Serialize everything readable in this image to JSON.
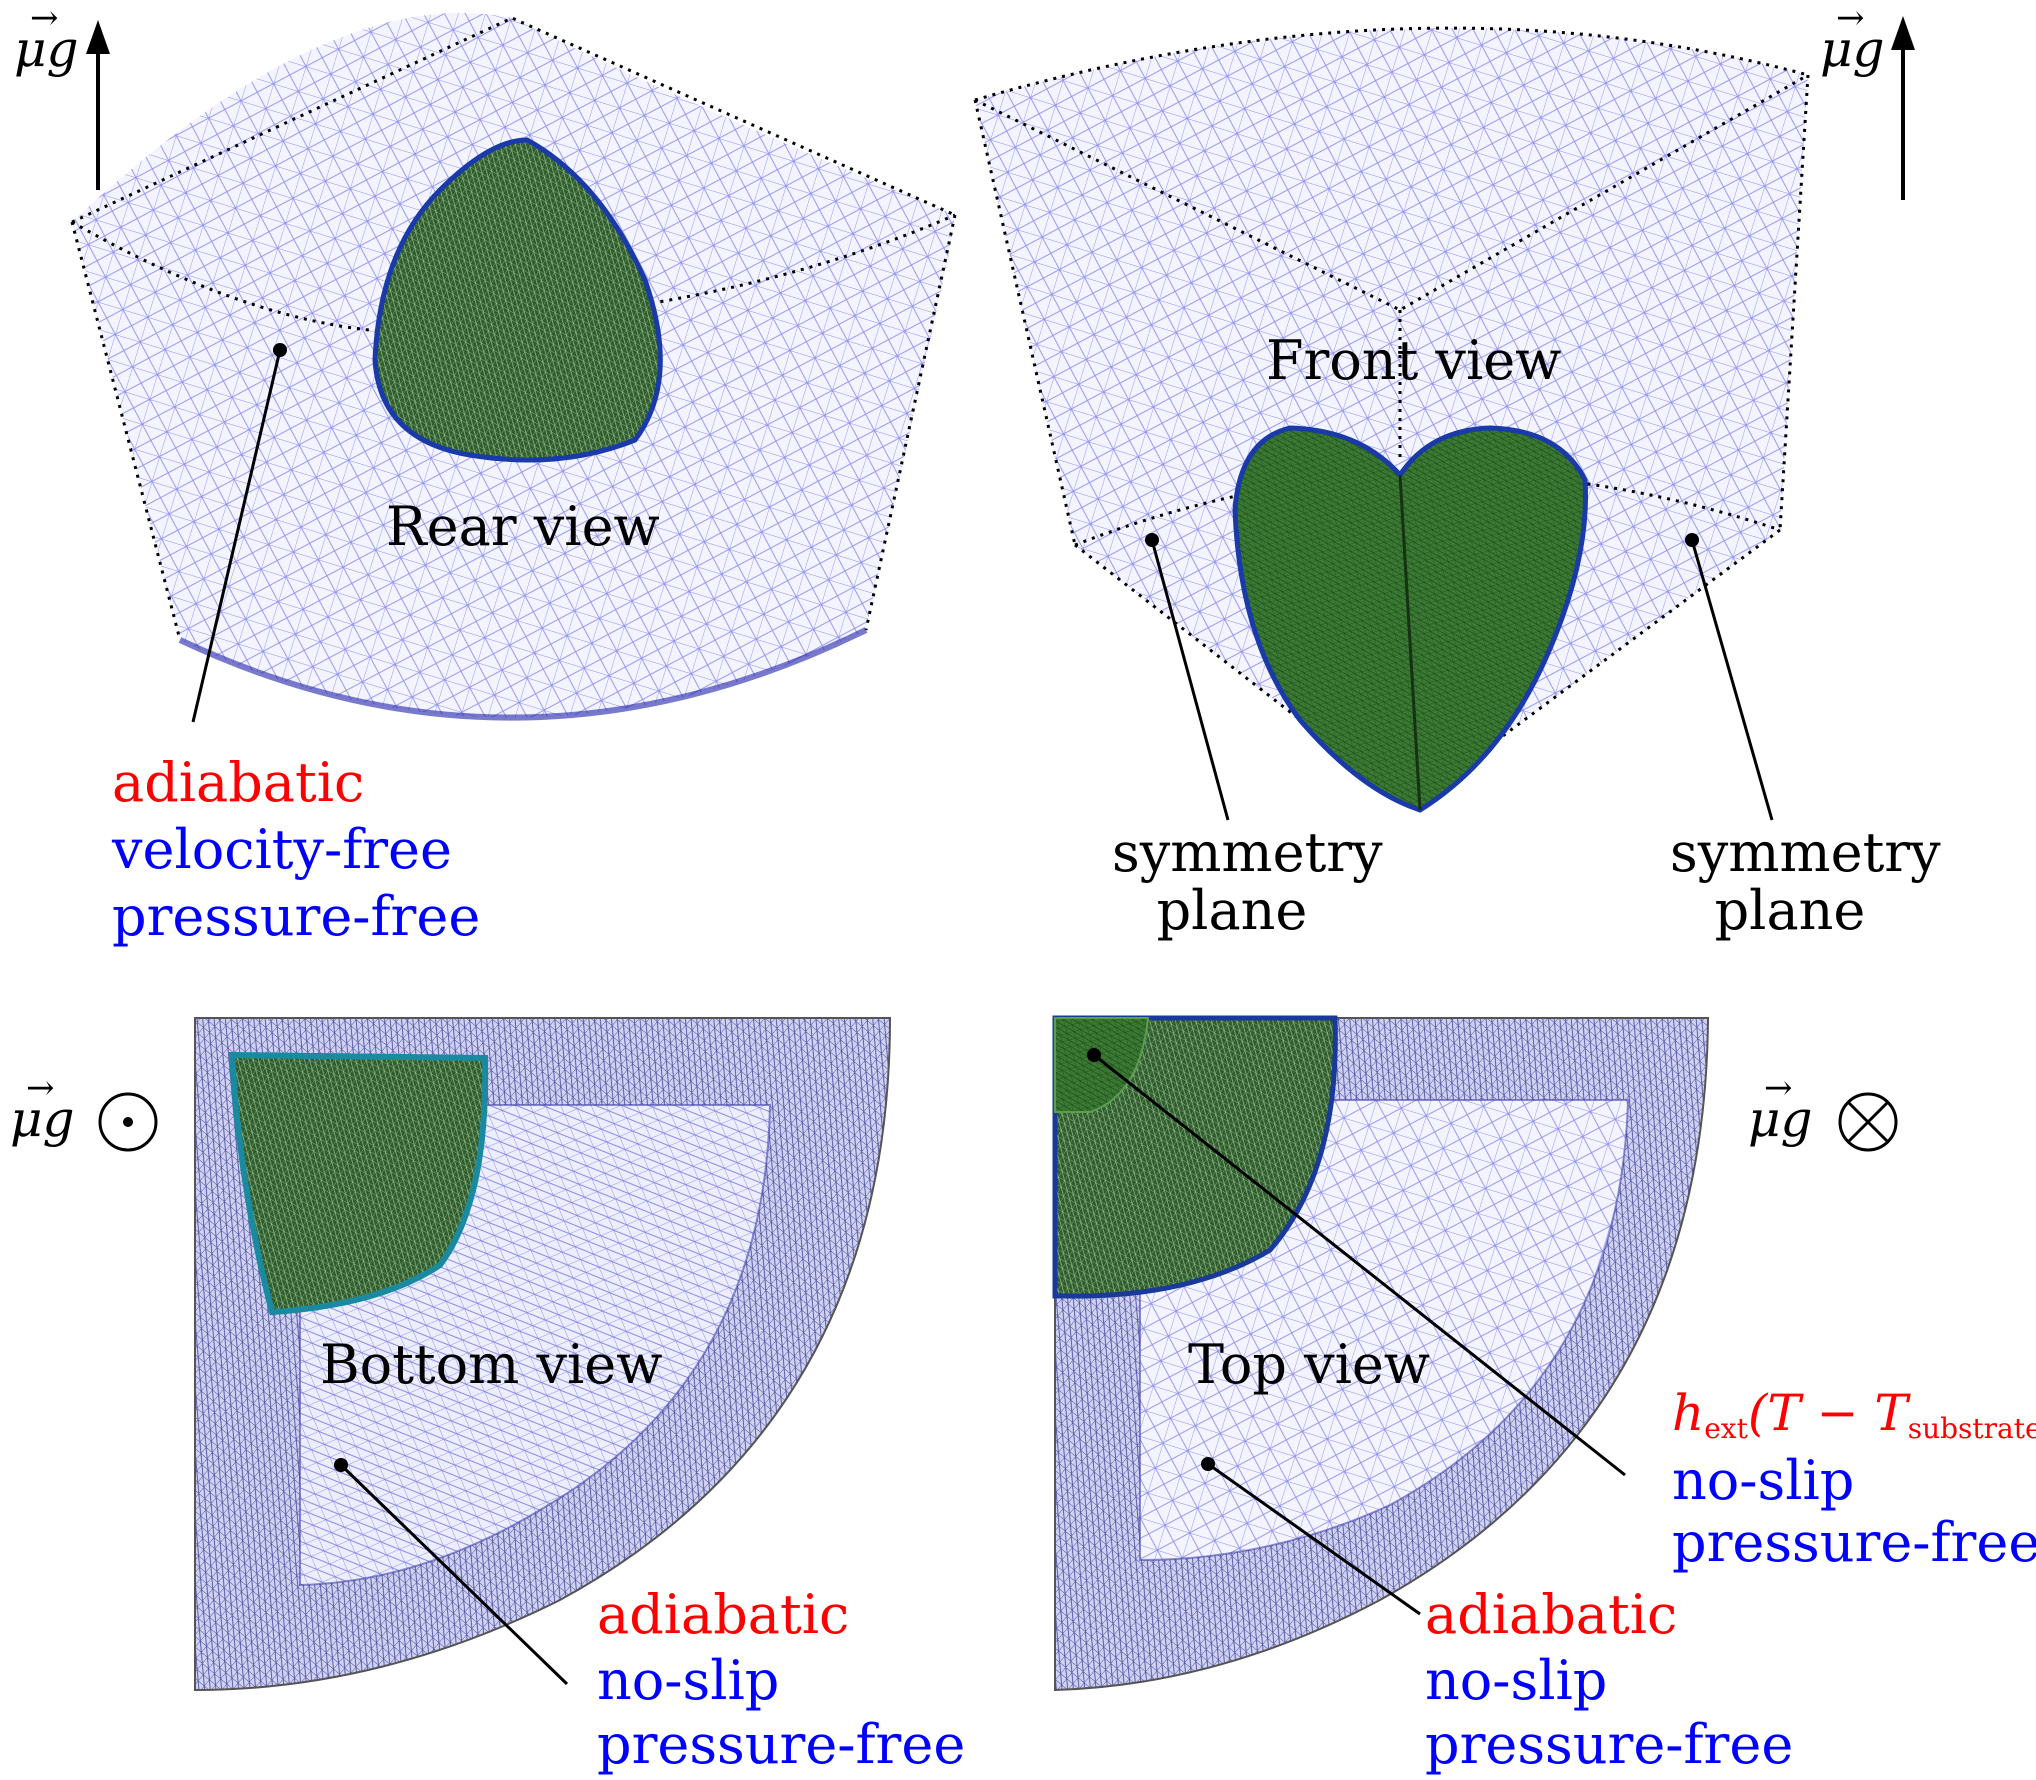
{
  "panels": {
    "rear": {
      "title": "Rear view",
      "gravity": "μg",
      "gravity_symbol": "arrow-up",
      "annotation": {
        "thermal": "adiabatic",
        "velocity": "velocity-free",
        "pressure": "pressure-free"
      }
    },
    "front": {
      "title": "Front view",
      "gravity": "μg",
      "gravity_symbol": "arrow-up",
      "left_label": {
        "line1": "symmetry",
        "line2": "plane"
      },
      "right_label": {
        "line1": "symmetry",
        "line2": "plane"
      }
    },
    "bottom": {
      "title": "Bottom view",
      "gravity": "μg",
      "gravity_symbol": "⊙",
      "annotation": {
        "thermal": "adiabatic",
        "velocity": "no-slip",
        "pressure": "pressure-free"
      }
    },
    "top": {
      "title": "Top view",
      "gravity": "μg",
      "gravity_symbol": "⊗",
      "substrate_annotation": {
        "h": "h",
        "h_sub": "ext",
        "open": "(T − T",
        "t_sub": "substrate",
        "close": ")",
        "velocity": "no-slip",
        "pressure": "pressure-free"
      },
      "annotation": {
        "thermal": "adiabatic",
        "velocity": "no-slip",
        "pressure": "pressure-free"
      }
    }
  },
  "colors": {
    "mesh": "#2b2bd9",
    "mesh_fill": "#eef0ff",
    "droplet": "#2f6a2a",
    "droplet_edge": "#1a3a9a",
    "thermal_text": "#ff0000",
    "flow_text": "#0000ff"
  }
}
